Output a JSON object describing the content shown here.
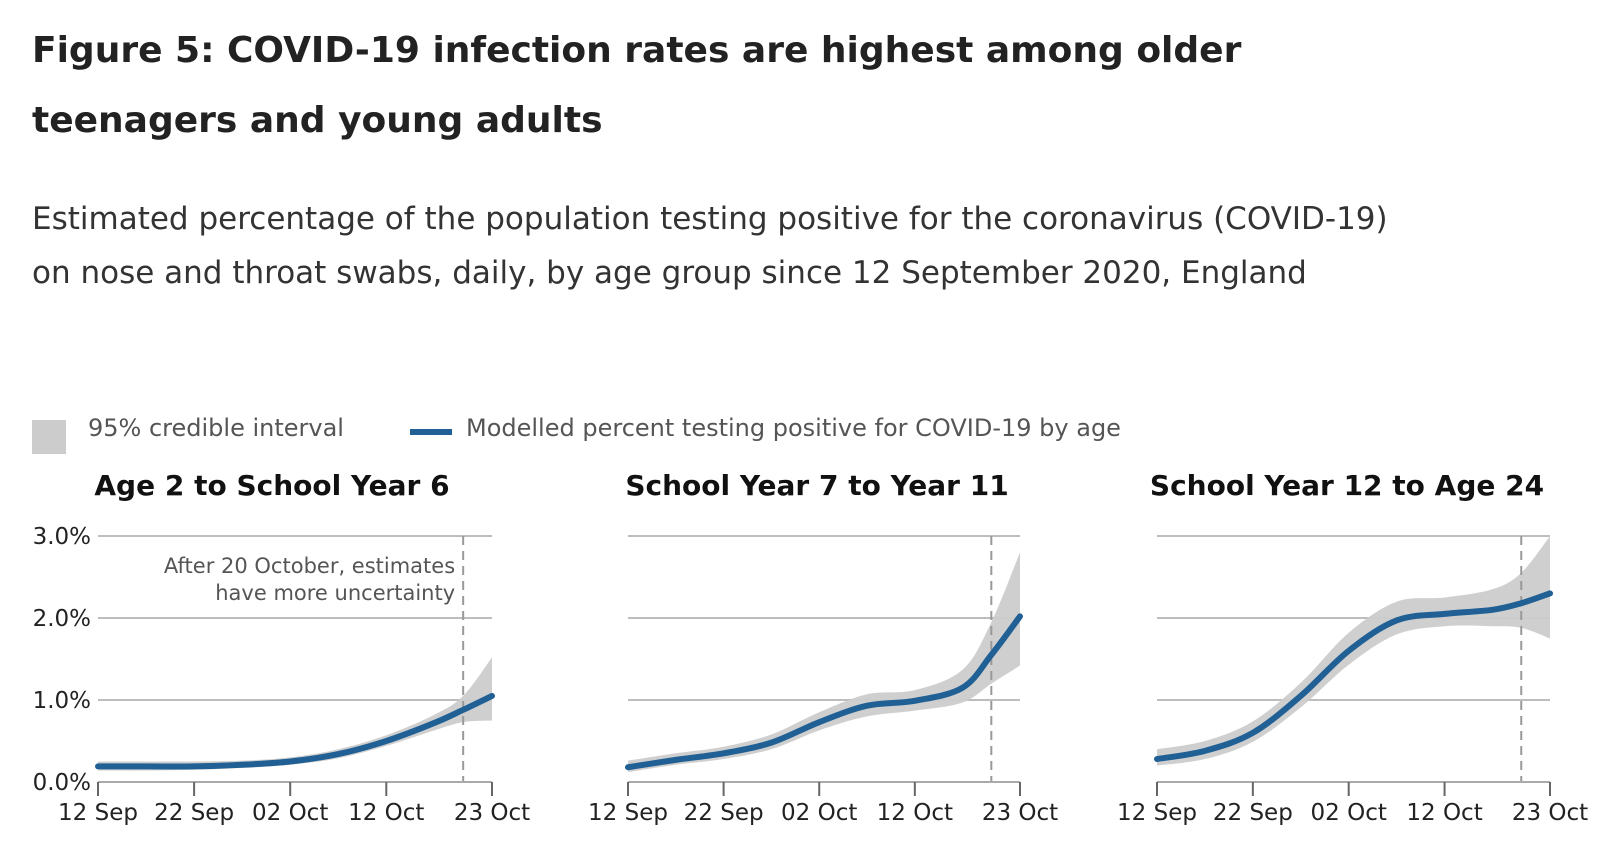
{
  "title": "Figure 5: COVID-19 infection rates are highest among older teenagers and young adults",
  "subtitle": "Estimated percentage of the population testing positive for the coronavirus (COVID-19) on nose and throat swabs, daily, by age group since 12 September 2020, England",
  "legend": {
    "ci_label": "95% credible interval",
    "line_label": "Modelled percent testing positive for COVID-19 by age"
  },
  "colors": {
    "line": "#206095",
    "band": "#cccccc",
    "grid": "#bdbdbd",
    "reference": "#999999"
  },
  "chart_data": [
    {
      "type": "line",
      "title": "Age 2 to School Year 6",
      "x_ticks": [
        "12 Sep",
        "22 Sep",
        "02 Oct",
        "12 Oct",
        "23 Oct"
      ],
      "y_ticks": [
        "0.0%",
        "1.0%",
        "2.0%",
        "3.0%"
      ],
      "ylim": [
        0,
        3
      ],
      "grid": true,
      "reference_line": {
        "date": "20 Oct",
        "annotation": [
          "After 20 October, estimates",
          "have more uncertainty"
        ]
      },
      "series": [
        {
          "name": "Modelled percent testing positive for COVID-19 by age",
          "x": [
            "12 Sep",
            "17 Sep",
            "22 Sep",
            "27 Sep",
            "02 Oct",
            "07 Oct",
            "12 Oct",
            "17 Oct",
            "20 Oct",
            "23 Oct"
          ],
          "values": [
            0.19,
            0.19,
            0.19,
            0.21,
            0.25,
            0.34,
            0.5,
            0.72,
            0.88,
            1.05
          ],
          "lower": [
            0.14,
            0.14,
            0.15,
            0.17,
            0.21,
            0.29,
            0.44,
            0.63,
            0.73,
            0.75
          ],
          "upper": [
            0.25,
            0.25,
            0.25,
            0.26,
            0.3,
            0.4,
            0.57,
            0.82,
            1.05,
            1.52
          ]
        }
      ]
    },
    {
      "type": "line",
      "title": "School Year 7 to Year 11",
      "x_ticks": [
        "12 Sep",
        "22 Sep",
        "02 Oct",
        "12 Oct",
        "23 Oct"
      ],
      "y_ticks": [
        "0.0%",
        "1.0%",
        "2.0%",
        "3.0%"
      ],
      "ylim": [
        0,
        3
      ],
      "grid": true,
      "reference_line": {
        "date": "20 Oct"
      },
      "series": [
        {
          "name": "Modelled percent testing positive for COVID-19 by age",
          "x": [
            "12 Sep",
            "17 Sep",
            "22 Sep",
            "27 Sep",
            "02 Oct",
            "07 Oct",
            "12 Oct",
            "17 Oct",
            "20 Oct",
            "23 Oct"
          ],
          "values": [
            0.18,
            0.27,
            0.35,
            0.48,
            0.73,
            0.93,
            0.99,
            1.15,
            1.55,
            2.02
          ],
          "lower": [
            0.12,
            0.21,
            0.28,
            0.4,
            0.63,
            0.8,
            0.87,
            0.97,
            1.2,
            1.42
          ],
          "upper": [
            0.26,
            0.35,
            0.43,
            0.58,
            0.85,
            1.07,
            1.12,
            1.37,
            1.95,
            2.8
          ]
        }
      ]
    },
    {
      "type": "line",
      "title": "School Year 12 to Age 24",
      "x_ticks": [
        "12 Sep",
        "22 Sep",
        "02 Oct",
        "12 Oct",
        "23 Oct"
      ],
      "y_ticks": [
        "0.0%",
        "1.0%",
        "2.0%",
        "3.0%"
      ],
      "ylim": [
        0,
        3
      ],
      "grid": true,
      "reference_line": {
        "date": "20 Oct"
      },
      "series": [
        {
          "name": "Modelled percent testing positive for COVID-19 by age",
          "x": [
            "12 Sep",
            "17 Sep",
            "22 Sep",
            "27 Sep",
            "02 Oct",
            "07 Oct",
            "12 Oct",
            "17 Oct",
            "20 Oct",
            "23 Oct"
          ],
          "values": [
            0.28,
            0.38,
            0.6,
            1.05,
            1.6,
            1.97,
            2.05,
            2.1,
            2.18,
            2.3
          ],
          "lower": [
            0.2,
            0.28,
            0.49,
            0.91,
            1.43,
            1.8,
            1.9,
            1.9,
            1.88,
            1.75
          ],
          "upper": [
            0.4,
            0.5,
            0.74,
            1.21,
            1.82,
            2.2,
            2.25,
            2.35,
            2.55,
            3.0
          ]
        }
      ]
    }
  ]
}
